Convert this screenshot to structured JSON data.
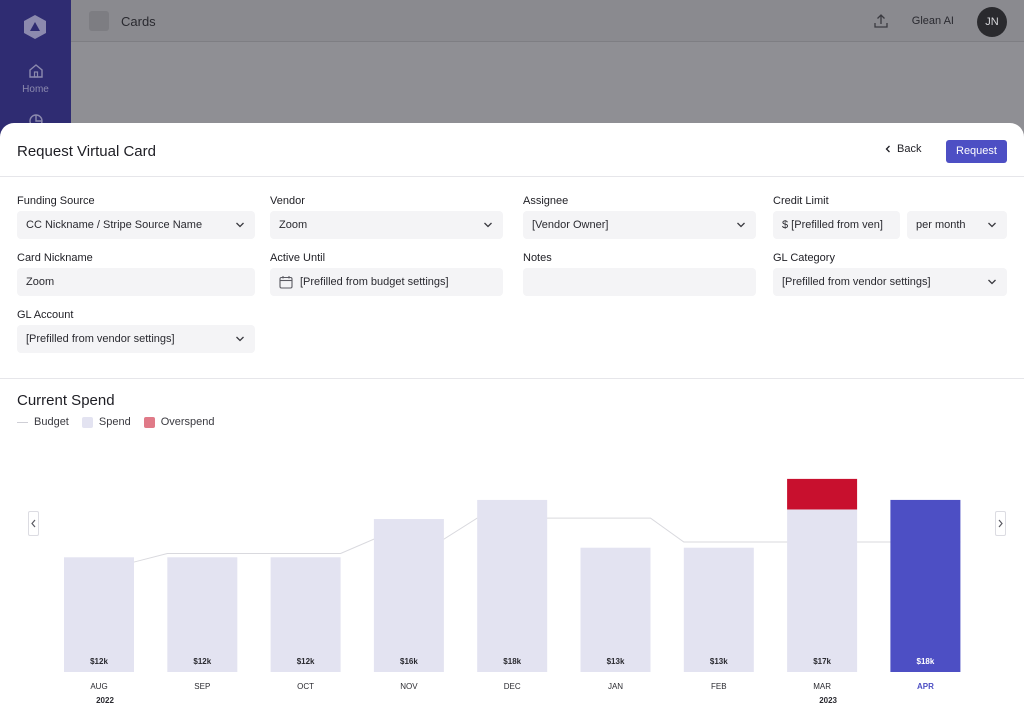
{
  "app": {
    "nav": [
      {
        "label": "Home",
        "icon": "home-icon"
      },
      {
        "label": "",
        "icon": "pie-chart-icon"
      }
    ],
    "header": {
      "title": "Cards",
      "glean_label": "Glean AI",
      "avatar_initials": "JN"
    }
  },
  "modal": {
    "title": "Request Virtual Card",
    "back_label": "Back",
    "request_label": "Request",
    "fields": {
      "funding_source": {
        "label": "Funding Source",
        "value": "CC Nickname / Stripe Source Name"
      },
      "vendor": {
        "label": "Vendor",
        "value": "Zoom"
      },
      "assignee": {
        "label": "Assignee",
        "value": "[Vendor Owner]"
      },
      "credit_limit": {
        "label": "Credit Limit",
        "value": "$ [Prefilled from ven]",
        "period": "per month"
      },
      "card_nickname": {
        "label": "Card Nickname",
        "value": "Zoom"
      },
      "active_until": {
        "label": "Active Until",
        "value": "[Prefilled from budget settings]"
      },
      "notes": {
        "label": "Notes",
        "value": ""
      },
      "gl_category": {
        "label": "GL Category",
        "value": "[Prefilled from vendor settings]"
      },
      "gl_account": {
        "label": "GL Account",
        "value": "[Prefilled from vendor settings]"
      }
    }
  },
  "spend": {
    "title": "Current Spend",
    "legend": {
      "budget": "Budget",
      "spend": "Spend",
      "overspend": "Overspend"
    },
    "colors": {
      "spend": "#e3e3f1",
      "overspend": "#c8102e",
      "current": "#4d4fc4",
      "budget": "#d9d9de",
      "current_label": "#4d4fc4"
    }
  },
  "chart_data": {
    "type": "bar",
    "categories": [
      "AUG",
      "SEP",
      "OCT",
      "NOV",
      "DEC",
      "JAN",
      "FEB",
      "MAR",
      "APR"
    ],
    "year_labels": [
      {
        "index": 0,
        "label": "2022"
      },
      {
        "index": 7,
        "label": "2023"
      }
    ],
    "series": [
      {
        "name": "Spend",
        "values": [
          12,
          12,
          12,
          16,
          18,
          13,
          13,
          17,
          18
        ]
      },
      {
        "name": "Budget",
        "values": [
          11.5,
          12.4,
          12.4,
          13.9,
          16.1,
          16.1,
          13.6,
          13.6,
          13.6
        ]
      }
    ],
    "overspend_values": [
      0,
      0,
      0,
      0,
      0,
      0,
      0,
      3.2,
      0
    ],
    "data_labels": [
      "$12k",
      "$12k",
      "$12k",
      "$16k",
      "$18k",
      "$13k",
      "$13k",
      "$17k",
      "$18k"
    ],
    "highlight_index": 8,
    "ylim": [
      0,
      25
    ]
  }
}
